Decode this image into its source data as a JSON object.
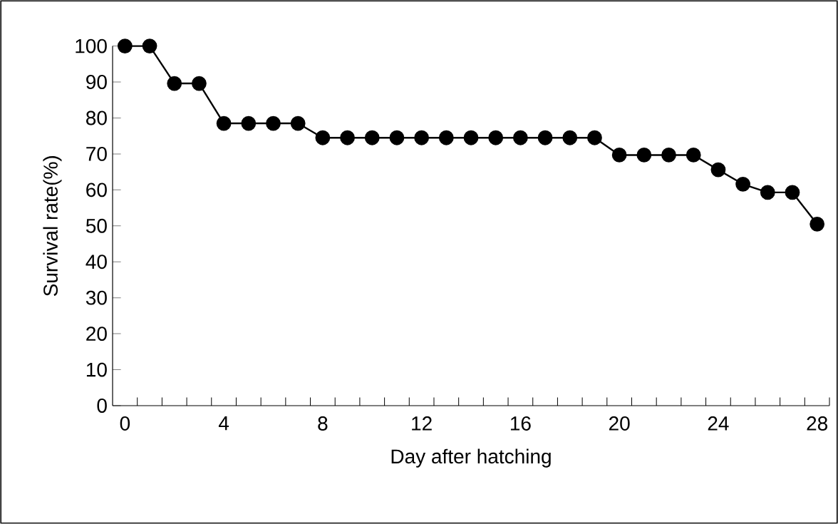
{
  "chart_data": {
    "type": "line",
    "xlabel": "Day after hatching",
    "ylabel": "Survival rate(%)",
    "x": [
      0,
      1,
      2,
      3,
      4,
      5,
      6,
      7,
      8,
      9,
      10,
      11,
      12,
      13,
      14,
      15,
      16,
      17,
      18,
      19,
      20,
      21,
      22,
      23,
      24,
      25,
      26,
      27,
      28
    ],
    "series": [
      {
        "color": "#000000",
        "values": [
          100,
          100,
          89.6,
          89.6,
          78.5,
          78.5,
          78.5,
          78.5,
          74.5,
          74.5,
          74.5,
          74.5,
          74.5,
          74.5,
          74.5,
          74.5,
          74.5,
          74.5,
          74.5,
          74.5,
          69.7,
          69.7,
          69.7,
          69.7,
          65.6,
          61.6,
          59.3,
          59.3,
          50.5
        ]
      }
    ],
    "xlim": [
      -0.5,
      28.5
    ],
    "ylim": [
      0,
      100
    ],
    "xticks": [
      0,
      {
        "value": 0.5,
        "label": null
      },
      {
        "value": 1.5,
        "label": null
      },
      {
        "value": 2.5,
        "label": null
      },
      {
        "value": 3.5,
        "label": null
      },
      4,
      {
        "value": 4.5,
        "label": null
      },
      {
        "value": 5.5,
        "label": null
      },
      {
        "value": 6.5,
        "label": null
      },
      {
        "value": 7.5,
        "label": null
      },
      8,
      {
        "value": 8.5,
        "label": null
      },
      {
        "value": 9.5,
        "label": null
      },
      {
        "value": 10.5,
        "label": null
      },
      {
        "value": 11.5,
        "label": null
      },
      12,
      {
        "value": 12.5,
        "label": null
      },
      {
        "value": 13.5,
        "label": null
      },
      {
        "value": 14.5,
        "label": null
      },
      {
        "value": 15.5,
        "label": null
      },
      16,
      {
        "value": 16.5,
        "label": null
      },
      {
        "value": 17.5,
        "label": null
      },
      {
        "value": 18.5,
        "label": null
      },
      {
        "value": 19.5,
        "label": null
      },
      20,
      {
        "value": 20.5,
        "label": null
      },
      {
        "value": 21.5,
        "label": null
      },
      {
        "value": 22.5,
        "label": null
      },
      {
        "value": 23.5,
        "label": null
      },
      24,
      {
        "value": 24.5,
        "label": null
      },
      {
        "value": 25.5,
        "label": null
      },
      {
        "value": 26.5,
        "label": null
      },
      {
        "value": 27.5,
        "label": null
      },
      28,
      {
        "value": 28.5,
        "label": null
      }
    ],
    "yticks": [
      0,
      10,
      20,
      30,
      40,
      50,
      60,
      70,
      80,
      90,
      100
    ],
    "marker": "circle",
    "line_style": "solid"
  }
}
